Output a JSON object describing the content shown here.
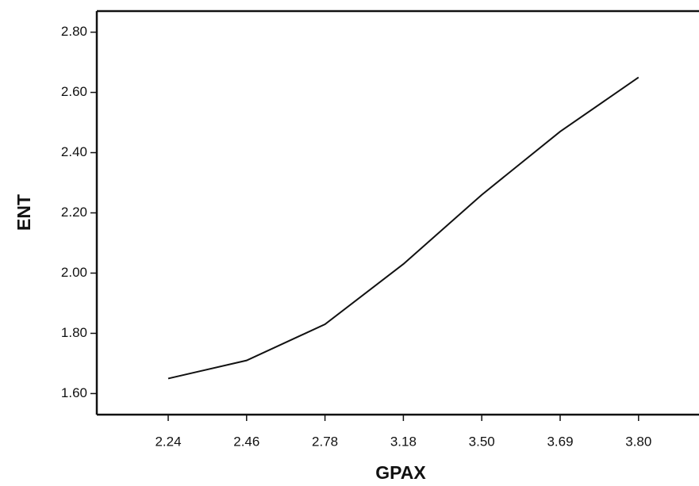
{
  "chart_data": {
    "type": "line",
    "x_label": "GPAX",
    "y_label": "ENT",
    "categories": [
      "2.24",
      "2.46",
      "2.78",
      "3.18",
      "3.50",
      "3.69",
      "3.80"
    ],
    "values": [
      1.65,
      1.71,
      1.83,
      2.03,
      2.26,
      2.47,
      2.65
    ],
    "color": "#111111",
    "ylim": [
      1.53,
      2.87
    ],
    "yticks": [
      {
        "value": 1.6,
        "label": "1.60"
      },
      {
        "value": 1.8,
        "label": "1.80"
      },
      {
        "value": 2.0,
        "label": "2.00"
      },
      {
        "value": 2.2,
        "label": "2.20"
      },
      {
        "value": 2.4,
        "label": "2.40"
      },
      {
        "value": 2.6,
        "label": "2.60"
      },
      {
        "value": 2.8,
        "label": "2.80"
      }
    ],
    "grid": false
  }
}
